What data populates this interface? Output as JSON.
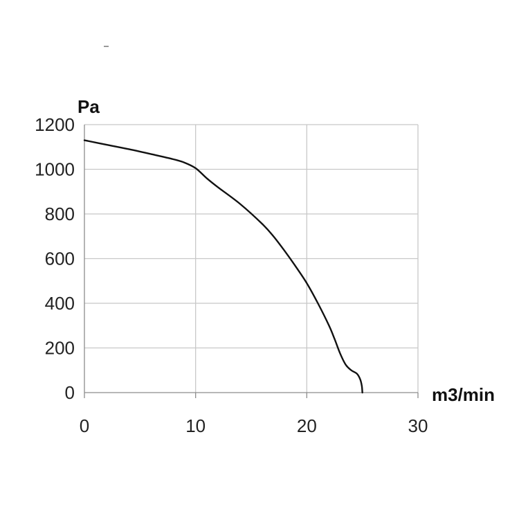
{
  "chart_data": {
    "type": "line",
    "xlabel": "m3/min",
    "ylabel": "Pa",
    "xlim": [
      0,
      30
    ],
    "ylim": [
      0,
      1200
    ],
    "x_ticks": [
      "0",
      "10",
      "20",
      "30"
    ],
    "y_ticks": [
      "0",
      "200",
      "400",
      "600",
      "800",
      "1000",
      "1200"
    ],
    "grid": true,
    "series": [
      {
        "x": [
          0,
          2,
          4,
          6,
          8,
          9,
          10,
          11,
          12,
          14,
          16,
          17,
          18,
          19,
          20,
          21,
          22,
          22.5,
          23,
          23.5,
          24,
          24.5,
          24.8,
          24.95,
          25.0
        ],
        "y": [
          1130,
          1110,
          1090,
          1068,
          1045,
          1030,
          1005,
          960,
          920,
          845,
          755,
          700,
          635,
          565,
          490,
          400,
          300,
          240,
          175,
          125,
          100,
          85,
          60,
          30,
          0
        ]
      }
    ]
  }
}
